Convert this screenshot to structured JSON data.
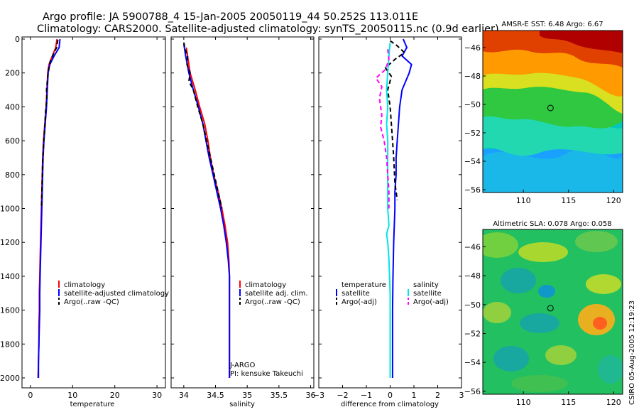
{
  "title": {
    "line1": "Argo profile: JA 5900788_4 15-Jan-2005 20050119_44 50.252S 113.011E",
    "line2": "Climatology: CARS2000. Satellite-adjusted climatology: synTS_20050115.nc (0.9d earlier)"
  },
  "colors": {
    "climatology": "#ff0000",
    "satellite": "#0000ff",
    "argo": "#000000",
    "sat_salinity": "#00e5e5",
    "argo_salinity": "#ff00ff"
  },
  "footer": "CSIRO 05-Aug-2005 12:19:23",
  "chart_data": [
    {
      "type": "line",
      "name": "temperature",
      "xlabel": "temperature",
      "xlim": [
        -2,
        32
      ],
      "ylim": [
        2050,
        0
      ],
      "xticks": [
        0,
        10,
        20,
        30
      ],
      "yticks": [
        0,
        200,
        400,
        600,
        800,
        1000,
        1200,
        1400,
        1600,
        1800,
        2000
      ],
      "legend": [
        "climatology",
        "satellite-adjusted climatology",
        "Argo(..raw -QC)"
      ],
      "series": [
        {
          "name": "climatology",
          "color": "#ff0000",
          "style": "solid",
          "points": [
            [
              6.3,
              0
            ],
            [
              6.0,
              50
            ],
            [
              5.2,
              100
            ],
            [
              4.4,
              150
            ],
            [
              4.1,
              200
            ],
            [
              3.9,
              300
            ],
            [
              3.7,
              400
            ],
            [
              3.4,
              500
            ],
            [
              3.1,
              600
            ],
            [
              2.9,
              700
            ],
            [
              2.8,
              800
            ],
            [
              2.7,
              900
            ],
            [
              2.6,
              1000
            ],
            [
              2.5,
              1100
            ],
            [
              2.4,
              1200
            ],
            [
              2.3,
              1300
            ],
            [
              2.2,
              1400
            ],
            [
              2.1,
              1500
            ],
            [
              2.1,
              1600
            ],
            [
              2.0,
              1700
            ],
            [
              2.0,
              1800
            ],
            [
              1.9,
              1900
            ],
            [
              1.8,
              2000
            ]
          ]
        },
        {
          "name": "satellite-adjusted climatology",
          "color": "#0000ff",
          "style": "solid",
          "points": [
            [
              7.0,
              0
            ],
            [
              6.8,
              50
            ],
            [
              5.6,
              100
            ],
            [
              4.6,
              150
            ],
            [
              4.2,
              200
            ],
            [
              4.0,
              300
            ],
            [
              3.8,
              400
            ],
            [
              3.5,
              500
            ],
            [
              3.2,
              600
            ],
            [
              3.0,
              700
            ],
            [
              2.9,
              800
            ],
            [
              2.8,
              900
            ],
            [
              2.7,
              1000
            ],
            [
              2.6,
              1100
            ],
            [
              2.5,
              1200
            ],
            [
              2.4,
              1300
            ],
            [
              2.3,
              1400
            ],
            [
              2.2,
              1500
            ],
            [
              2.2,
              1600
            ],
            [
              2.1,
              1700
            ],
            [
              2.0,
              1800
            ],
            [
              1.9,
              1900
            ],
            [
              1.9,
              2000
            ]
          ]
        },
        {
          "name": "Argo(..raw -QC)",
          "color": "#000000",
          "style": "dashed",
          "points": [
            [
              6.5,
              5
            ],
            [
              6.2,
              50
            ],
            [
              5.4,
              90
            ],
            [
              4.7,
              130
            ],
            [
              4.3,
              180
            ],
            [
              4.0,
              250
            ],
            [
              3.8,
              300
            ],
            [
              3.9,
              350
            ],
            [
              3.6,
              420
            ],
            [
              3.4,
              520
            ],
            [
              3.1,
              620
            ],
            [
              2.9,
              720
            ],
            [
              2.8,
              820
            ],
            [
              2.7,
              920
            ],
            [
              2.6,
              1000
            ]
          ]
        }
      ]
    },
    {
      "type": "line",
      "name": "salinity",
      "xlabel": "salinity",
      "xlim": [
        33.8,
        36.05
      ],
      "ylim": [
        2050,
        0
      ],
      "xticks": [
        34,
        34.5,
        35,
        35.5,
        36
      ],
      "legend": [
        "climatology",
        "satellite adj. clim.",
        "Argo(..raw -QC)"
      ],
      "annotations": [
        "J-ARGO",
        "PI: kensuke Takeuchi"
      ],
      "series": [
        {
          "name": "climatology",
          "color": "#ff0000",
          "style": "solid",
          "points": [
            [
              34.04,
              50
            ],
            [
              34.06,
              100
            ],
            [
              34.1,
              200
            ],
            [
              34.18,
              300
            ],
            [
              34.25,
              400
            ],
            [
              34.33,
              500
            ],
            [
              34.38,
              600
            ],
            [
              34.42,
              700
            ],
            [
              34.47,
              800
            ],
            [
              34.54,
              900
            ],
            [
              34.6,
              1000
            ],
            [
              34.65,
              1100
            ],
            [
              34.69,
              1200
            ],
            [
              34.71,
              1300
            ],
            [
              34.72,
              1400
            ],
            [
              34.72,
              1500
            ],
            [
              34.72,
              1600
            ],
            [
              34.72,
              1700
            ],
            [
              34.72,
              1800
            ],
            [
              34.72,
              1900
            ],
            [
              34.72,
              2000
            ]
          ]
        },
        {
          "name": "satellite adj. clim.",
          "color": "#0000ff",
          "style": "solid",
          "points": [
            [
              34.0,
              30
            ],
            [
              34.03,
              100
            ],
            [
              34.08,
              200
            ],
            [
              34.15,
              300
            ],
            [
              34.23,
              400
            ],
            [
              34.3,
              500
            ],
            [
              34.35,
              600
            ],
            [
              34.4,
              700
            ],
            [
              34.46,
              800
            ],
            [
              34.52,
              900
            ],
            [
              34.58,
              1000
            ],
            [
              34.63,
              1100
            ],
            [
              34.67,
              1200
            ],
            [
              34.7,
              1300
            ],
            [
              34.72,
              1400
            ],
            [
              34.72,
              1500
            ],
            [
              34.72,
              1600
            ],
            [
              34.72,
              1700
            ],
            [
              34.72,
              1800
            ],
            [
              34.72,
              1900
            ],
            [
              34.72,
              2000
            ]
          ]
        },
        {
          "name": "Argo(..raw -QC)",
          "color": "#000000",
          "style": "dashed",
          "points": [
            [
              34.0,
              20
            ],
            [
              34.02,
              60
            ],
            [
              34.06,
              100
            ],
            [
              34.05,
              150
            ],
            [
              34.1,
              200
            ],
            [
              34.08,
              250
            ],
            [
              34.15,
              300
            ],
            [
              34.22,
              400
            ],
            [
              34.3,
              500
            ],
            [
              34.36,
              600
            ],
            [
              34.42,
              700
            ],
            [
              34.48,
              800
            ],
            [
              34.54,
              900
            ],
            [
              34.6,
              1000
            ]
          ]
        }
      ]
    },
    {
      "type": "line",
      "name": "difference",
      "xlabel": "difference from climatology",
      "xlim": [
        -3,
        3
      ],
      "ylim": [
        2050,
        0
      ],
      "xticks": [
        -3,
        -2,
        -1,
        0,
        1,
        2,
        3
      ],
      "legend": [
        "temperature",
        "satellite",
        "Argo(-adj)",
        "salinity",
        "satellite",
        "Argo(-adj)"
      ],
      "series": [
        {
          "name": "temperature satellite",
          "color": "#0000ff",
          "style": "solid",
          "points": [
            [
              0.55,
              0
            ],
            [
              0.7,
              50
            ],
            [
              0.5,
              100
            ],
            [
              0.9,
              150
            ],
            [
              0.8,
              200
            ],
            [
              0.5,
              300
            ],
            [
              0.4,
              400
            ],
            [
              0.35,
              500
            ],
            [
              0.3,
              600
            ],
            [
              0.25,
              700
            ],
            [
              0.25,
              800
            ],
            [
              0.2,
              900
            ],
            [
              0.2,
              1000
            ],
            [
              0.15,
              1200
            ],
            [
              0.12,
              1400
            ],
            [
              0.1,
              1600
            ],
            [
              0.1,
              1800
            ],
            [
              0.1,
              2000
            ]
          ]
        },
        {
          "name": "temperature Argo(-adj)",
          "color": "#000000",
          "style": "dashed",
          "points": [
            [
              0.0,
              10
            ],
            [
              0.3,
              40
            ],
            [
              0.6,
              80
            ],
            [
              0.2,
              120
            ],
            [
              -0.2,
              170
            ],
            [
              0.05,
              220
            ],
            [
              -0.1,
              300
            ],
            [
              0.0,
              400
            ],
            [
              0.05,
              500
            ],
            [
              0.1,
              600
            ],
            [
              0.15,
              700
            ],
            [
              0.2,
              850
            ],
            [
              0.25,
              900
            ],
            [
              0.3,
              950
            ]
          ]
        },
        {
          "name": "salinity satellite",
          "color": "#00e5e5",
          "style": "solid",
          "points": [
            [
              0.0,
              20
            ],
            [
              -0.05,
              100
            ],
            [
              -0.1,
              200
            ],
            [
              -0.15,
              300
            ],
            [
              -0.1,
              400
            ],
            [
              -0.15,
              500
            ],
            [
              -0.1,
              600
            ],
            [
              -0.1,
              700
            ],
            [
              -0.1,
              800
            ],
            [
              -0.1,
              900
            ],
            [
              -0.1,
              1000
            ],
            [
              -0.05,
              1100
            ],
            [
              -0.15,
              1150
            ],
            [
              -0.1,
              1200
            ],
            [
              -0.05,
              1300
            ],
            [
              0.0,
              1500
            ],
            [
              0.0,
              1700
            ],
            [
              0.0,
              2000
            ]
          ]
        },
        {
          "name": "salinity Argo(-adj)",
          "color": "#ff00ff",
          "style": "dashed",
          "points": [
            [
              -0.1,
              60
            ],
            [
              -0.05,
              120
            ],
            [
              -0.2,
              180
            ],
            [
              -0.6,
              230
            ],
            [
              -0.35,
              280
            ],
            [
              -0.45,
              350
            ],
            [
              -0.35,
              450
            ],
            [
              -0.4,
              520
            ],
            [
              -0.25,
              600
            ],
            [
              -0.15,
              700
            ],
            [
              -0.1,
              800
            ],
            [
              -0.05,
              900
            ],
            [
              -0.05,
              1000
            ]
          ]
        }
      ]
    },
    {
      "type": "heatmap",
      "name": "amsre_sst",
      "title": "AMSR-E SST: 6.48 Argo: 6.67",
      "xlim": [
        105.5,
        121
      ],
      "ylim": [
        -56.2,
        -44.8
      ],
      "xticks": [
        110,
        115,
        120
      ],
      "yticks": [
        -46,
        -48,
        -50,
        -52,
        -54,
        -56
      ],
      "marker": {
        "lon": 113.0,
        "lat": -50.25
      }
    },
    {
      "type": "heatmap",
      "name": "altimetric_sla",
      "title": "Altimetric SLA: 0.078 Argo: 0.058",
      "xlim": [
        105.5,
        121
      ],
      "ylim": [
        -56.2,
        -44.8
      ],
      "xticks": [
        110,
        115,
        120
      ],
      "yticks": [
        -46,
        -48,
        -50,
        -52,
        -54,
        -56
      ],
      "marker": {
        "lon": 113.0,
        "lat": -50.25
      }
    }
  ]
}
